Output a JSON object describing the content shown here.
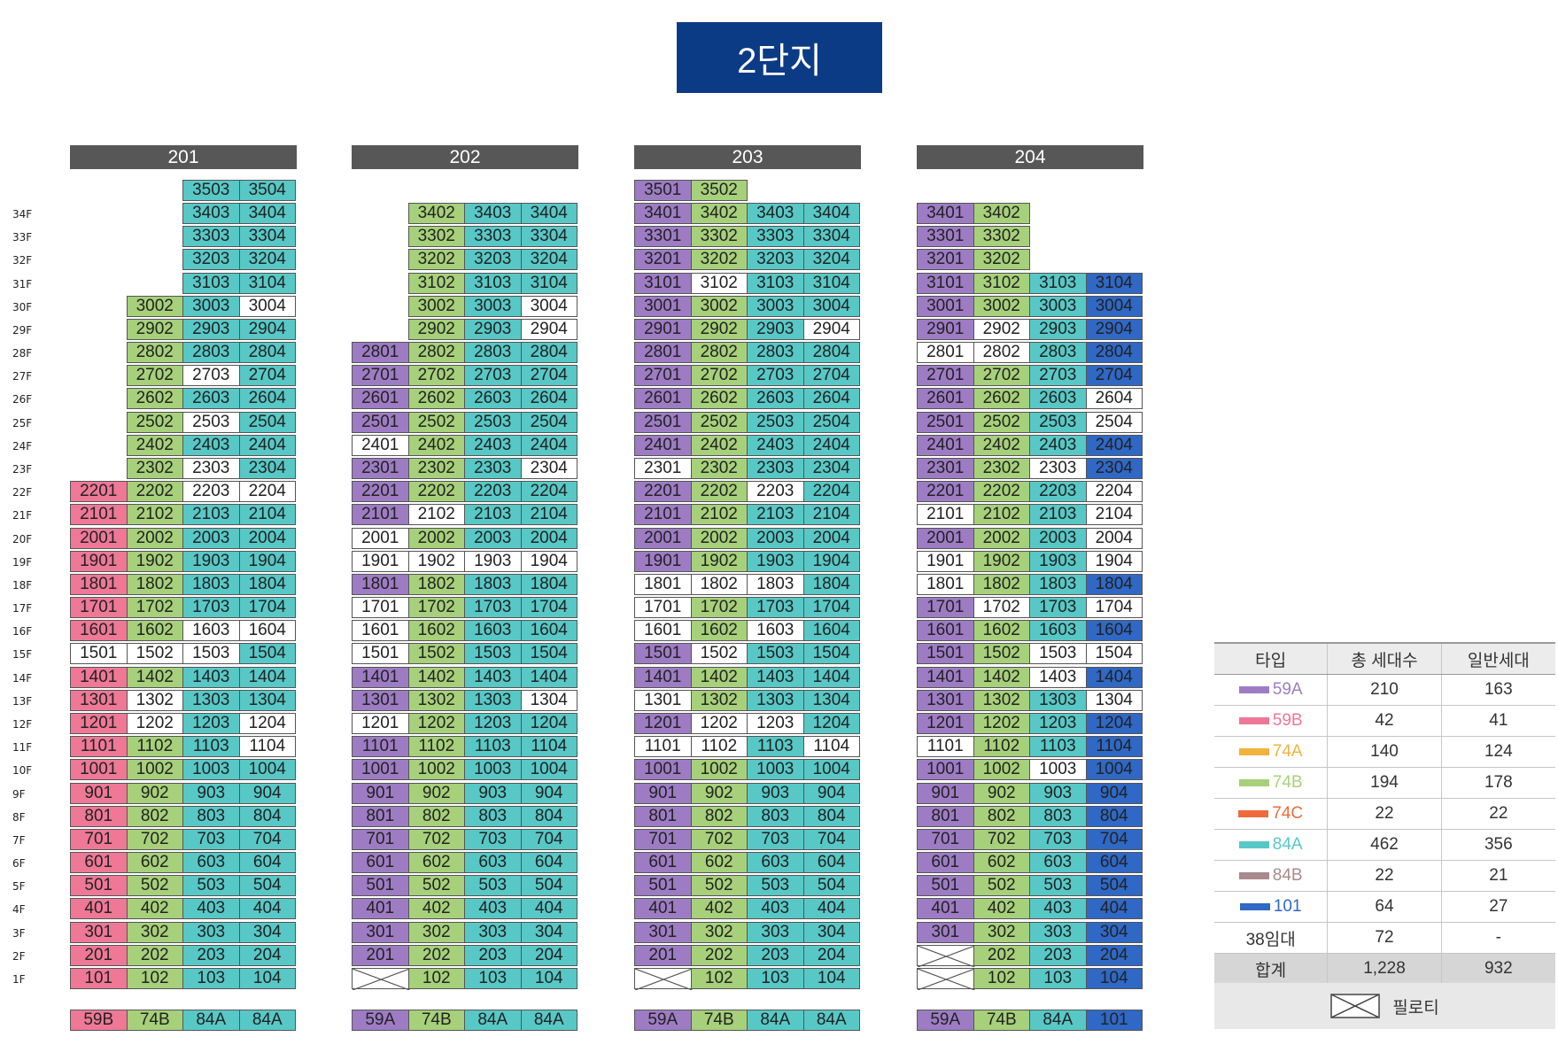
{
  "title": "2단지",
  "colors": {
    "59A": "#9d7cc4",
    "59B": "#ee7896",
    "74A": "#f2b23c",
    "74B": "#a6d07a",
    "74C": "#ee6a3c",
    "84A": "#57c8c6",
    "84B": "#a8898e",
    "101": "#2f68c5",
    "rental": "#ffffff"
  },
  "floors": [
    "34F",
    "33F",
    "32F",
    "31F",
    "30F",
    "29F",
    "28F",
    "27F",
    "26F",
    "25F",
    "24F",
    "23F",
    "22F",
    "21F",
    "20F",
    "19F",
    "18F",
    "17F",
    "16F",
    "15F",
    "14F",
    "13F",
    "12F",
    "11F",
    "10F",
    "9F",
    "8F",
    "7F",
    "6F",
    "5F",
    "4F",
    "3F",
    "2F",
    "1F"
  ],
  "buildings": [
    {
      "name": "201",
      "types": [
        "59B",
        "74B",
        "84A",
        "84A"
      ],
      "top": [
        22,
        30,
        35,
        35
      ],
      "piloti": [
        false,
        false,
        false,
        false
      ],
      "white": [
        [
          "2703"
        ],
        [
          "2503"
        ],
        [
          "2303"
        ],
        [
          "2203"
        ],
        [
          "1603"
        ],
        [
          "1302"
        ],
        [
          "1202"
        ],
        [
          "1604"
        ],
        [
          "1204"
        ],
        [
          "1104"
        ],
        [
          "1501"
        ],
        [
          "1502"
        ],
        [
          "1503"
        ],
        [
          "3004"
        ],
        [
          "2204"
        ]
      ]
    },
    {
      "name": "202",
      "types": [
        "59A",
        "74B",
        "84A",
        "84A"
      ],
      "top": [
        28,
        34,
        34,
        34
      ],
      "piloti": [
        true,
        false,
        false,
        false
      ],
      "white": [
        [
          "2401"
        ],
        [
          "2102"
        ],
        [
          "2001"
        ],
        [
          "1901"
        ],
        [
          "1701"
        ],
        [
          "1601"
        ],
        [
          "1501"
        ],
        [
          "1201"
        ],
        [
          "1902"
        ],
        [
          "1903"
        ],
        [
          "1904"
        ],
        [
          "2304"
        ],
        [
          "1304"
        ],
        [
          "3004"
        ],
        [
          "2904"
        ]
      ]
    },
    {
      "name": "203",
      "types": [
        "59A",
        "74B",
        "84A",
        "84A"
      ],
      "top": [
        35,
        35,
        34,
        34
      ],
      "piloti": [
        true,
        false,
        false,
        false
      ],
      "white": [
        [
          "2301"
        ],
        [
          "1801"
        ],
        [
          "1701"
        ],
        [
          "1601"
        ],
        [
          "1301"
        ],
        [
          "1101"
        ],
        [
          "3102"
        ],
        [
          "1802"
        ],
        [
          "1502"
        ],
        [
          "1202"
        ],
        [
          "1102"
        ],
        [
          "2203"
        ],
        [
          "1803"
        ],
        [
          "1603"
        ],
        [
          "1203"
        ],
        [
          "2904"
        ],
        [
          "1104"
        ]
      ]
    },
    {
      "name": "204",
      "types": [
        "59A",
        "74B",
        "84A",
        "101"
      ],
      "top": [
        34,
        34,
        31,
        31
      ],
      "piloti": [
        [
          2,
          1
        ],
        false,
        false,
        false
      ],
      "white": [
        [
          "2801"
        ],
        [
          "2101"
        ],
        [
          "1901"
        ],
        [
          "1801"
        ],
        [
          "1101"
        ],
        [
          "2902"
        ],
        [
          "2802"
        ],
        [
          "1702"
        ],
        [
          "2303"
        ],
        [
          "1503"
        ],
        [
          "1403"
        ],
        [
          "1003"
        ],
        [
          "2604"
        ],
        [
          "2504"
        ],
        [
          "2204"
        ],
        [
          "2104"
        ],
        [
          "2004"
        ],
        [
          "1904"
        ],
        [
          "1704"
        ],
        [
          "1504"
        ],
        [
          "1304"
        ]
      ]
    }
  ],
  "overrides": {
    "201": {
      "2101": "59B",
      "2001": "59B",
      "1901": "59B",
      "1801": "59B",
      "1701": "59B",
      "1601": "59B",
      "1401": "59B",
      "1301": "59B",
      "1201": "59B",
      "1101": "59B",
      "1001": "59B",
      "901": "59B",
      "801": "59B",
      "701": "59B",
      "601": "59B",
      "501": "59B",
      "401": "59B",
      "301": "59B",
      "201": "59B",
      "101": "59B"
    },
    "203": {
      "3401": "59A",
      "3402": "74B"
    },
    "204": {
      "3301": "59A",
      "3302": "74B",
      "3201": "59A",
      "3202": "74B",
      "3101": "59A",
      "3102": "74B"
    }
  },
  "buildings_list": [
    {
      "name": "201",
      "types": [
        "59B",
        "74B",
        "84A",
        "84A"
      ]
    },
    {
      "name": "202",
      "types": [
        "59A",
        "74B",
        "84A",
        "84A"
      ]
    },
    {
      "name": "203",
      "types": [
        "59A",
        "74B",
        "84A",
        "84A"
      ]
    },
    {
      "name": "204",
      "types": [
        "59A",
        "74B",
        "84A",
        "101"
      ]
    }
  ],
  "legend": {
    "headers": [
      "타입",
      "총 세대수",
      "일반세대"
    ],
    "rows": [
      {
        "type": "59A",
        "color": "#9d7cc4",
        "total": "210",
        "general": "163"
      },
      {
        "type": "59B",
        "color": "#ee7896",
        "total": "42",
        "general": "41"
      },
      {
        "type": "74A",
        "color": "#f2b23c",
        "total": "140",
        "general": "124"
      },
      {
        "type": "74B",
        "color": "#a6d07a",
        "total": "194",
        "general": "178"
      },
      {
        "type": "74C",
        "color": "#ee6a3c",
        "total": "22",
        "general": "22"
      },
      {
        "type": "84A",
        "color": "#57c8c6",
        "total": "462",
        "general": "356"
      },
      {
        "type": "84B",
        "color": "#a8898e",
        "total": "22",
        "general": "21"
      },
      {
        "type": "101",
        "color": "#2f68c5",
        "total": "64",
        "general": "27"
      },
      {
        "type": "38임대",
        "color": "",
        "total": "72",
        "general": "-"
      }
    ],
    "total": {
      "label": "합계",
      "total": "1,228",
      "general": "932"
    },
    "piloti_label": "필로티"
  }
}
